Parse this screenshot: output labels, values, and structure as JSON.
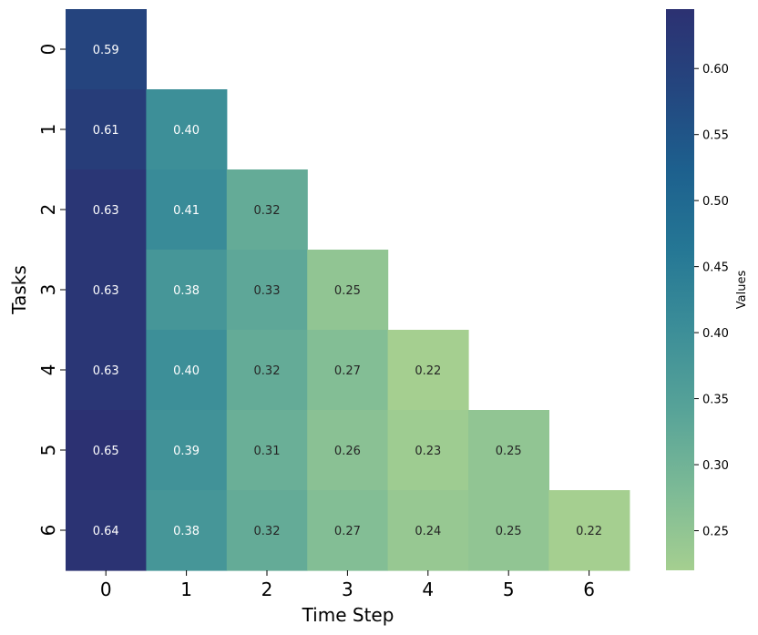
{
  "chart_data": {
    "type": "heatmap",
    "xlabel": "Time Step",
    "ylabel": "Tasks",
    "x_categories": [
      "0",
      "1",
      "2",
      "3",
      "4",
      "5",
      "6"
    ],
    "y_categories": [
      "0",
      "1",
      "2",
      "3",
      "4",
      "5",
      "6"
    ],
    "mask": "upper triangle above diagonal (blank cells)",
    "values": [
      [
        0.59,
        null,
        null,
        null,
        null,
        null,
        null
      ],
      [
        0.61,
        0.4,
        null,
        null,
        null,
        null,
        null
      ],
      [
        0.63,
        0.41,
        0.32,
        null,
        null,
        null,
        null
      ],
      [
        0.63,
        0.38,
        0.33,
        0.25,
        null,
        null,
        null
      ],
      [
        0.63,
        0.4,
        0.32,
        0.27,
        0.22,
        null,
        null
      ],
      [
        0.65,
        0.39,
        0.31,
        0.26,
        0.23,
        0.25,
        null
      ],
      [
        0.64,
        0.38,
        0.32,
        0.27,
        0.24,
        0.25,
        0.22
      ]
    ],
    "colorbar": {
      "label": "Values",
      "range": [
        0.22,
        0.645
      ],
      "ticks": [
        "0.25",
        "0.30",
        "0.35",
        "0.40",
        "0.45",
        "0.50",
        "0.55",
        "0.60"
      ],
      "colormap": "crest",
      "color_stops": [
        "#a5cf90",
        "#7cba96",
        "#57a398",
        "#3c8e98",
        "#257795",
        "#1d608e",
        "#24467f",
        "#2c3172"
      ]
    }
  }
}
